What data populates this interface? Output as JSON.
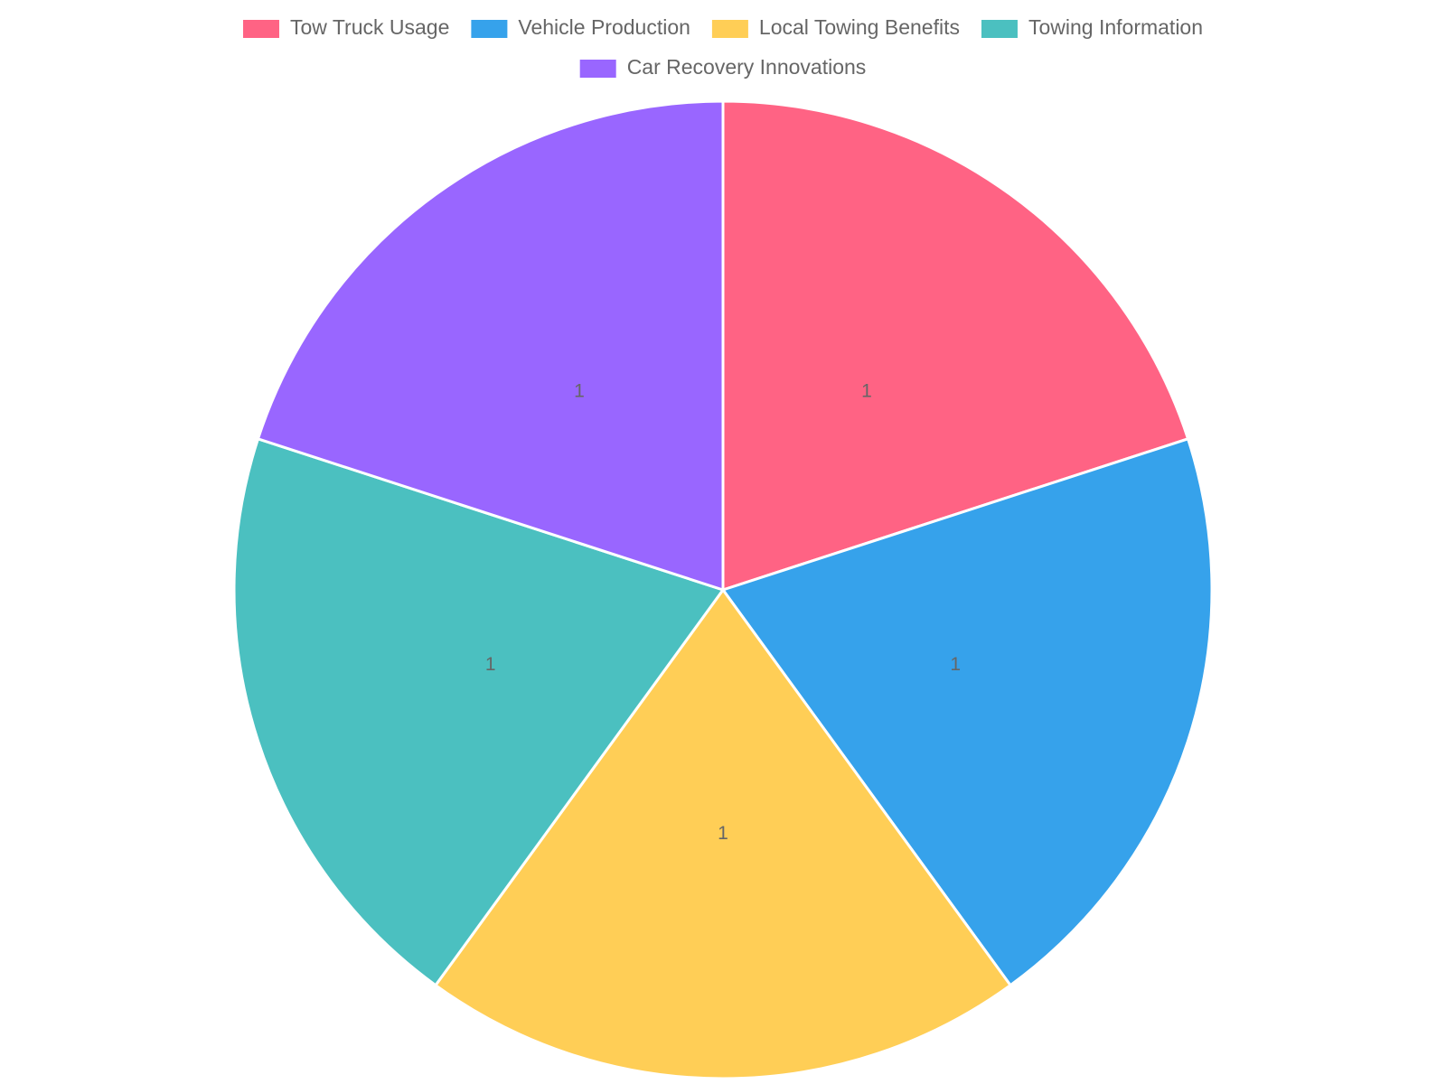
{
  "chart_data": {
    "type": "pie",
    "categories": [
      "Tow Truck Usage",
      "Vehicle Production",
      "Local Towing Benefits",
      "Towing Information",
      "Car Recovery Innovations"
    ],
    "values": [
      1,
      1,
      1,
      1,
      1
    ],
    "colors": [
      "#ff6384",
      "#36a2eb",
      "#ffce56",
      "#4bc0c0",
      "#9966ff"
    ],
    "legend": "top"
  }
}
